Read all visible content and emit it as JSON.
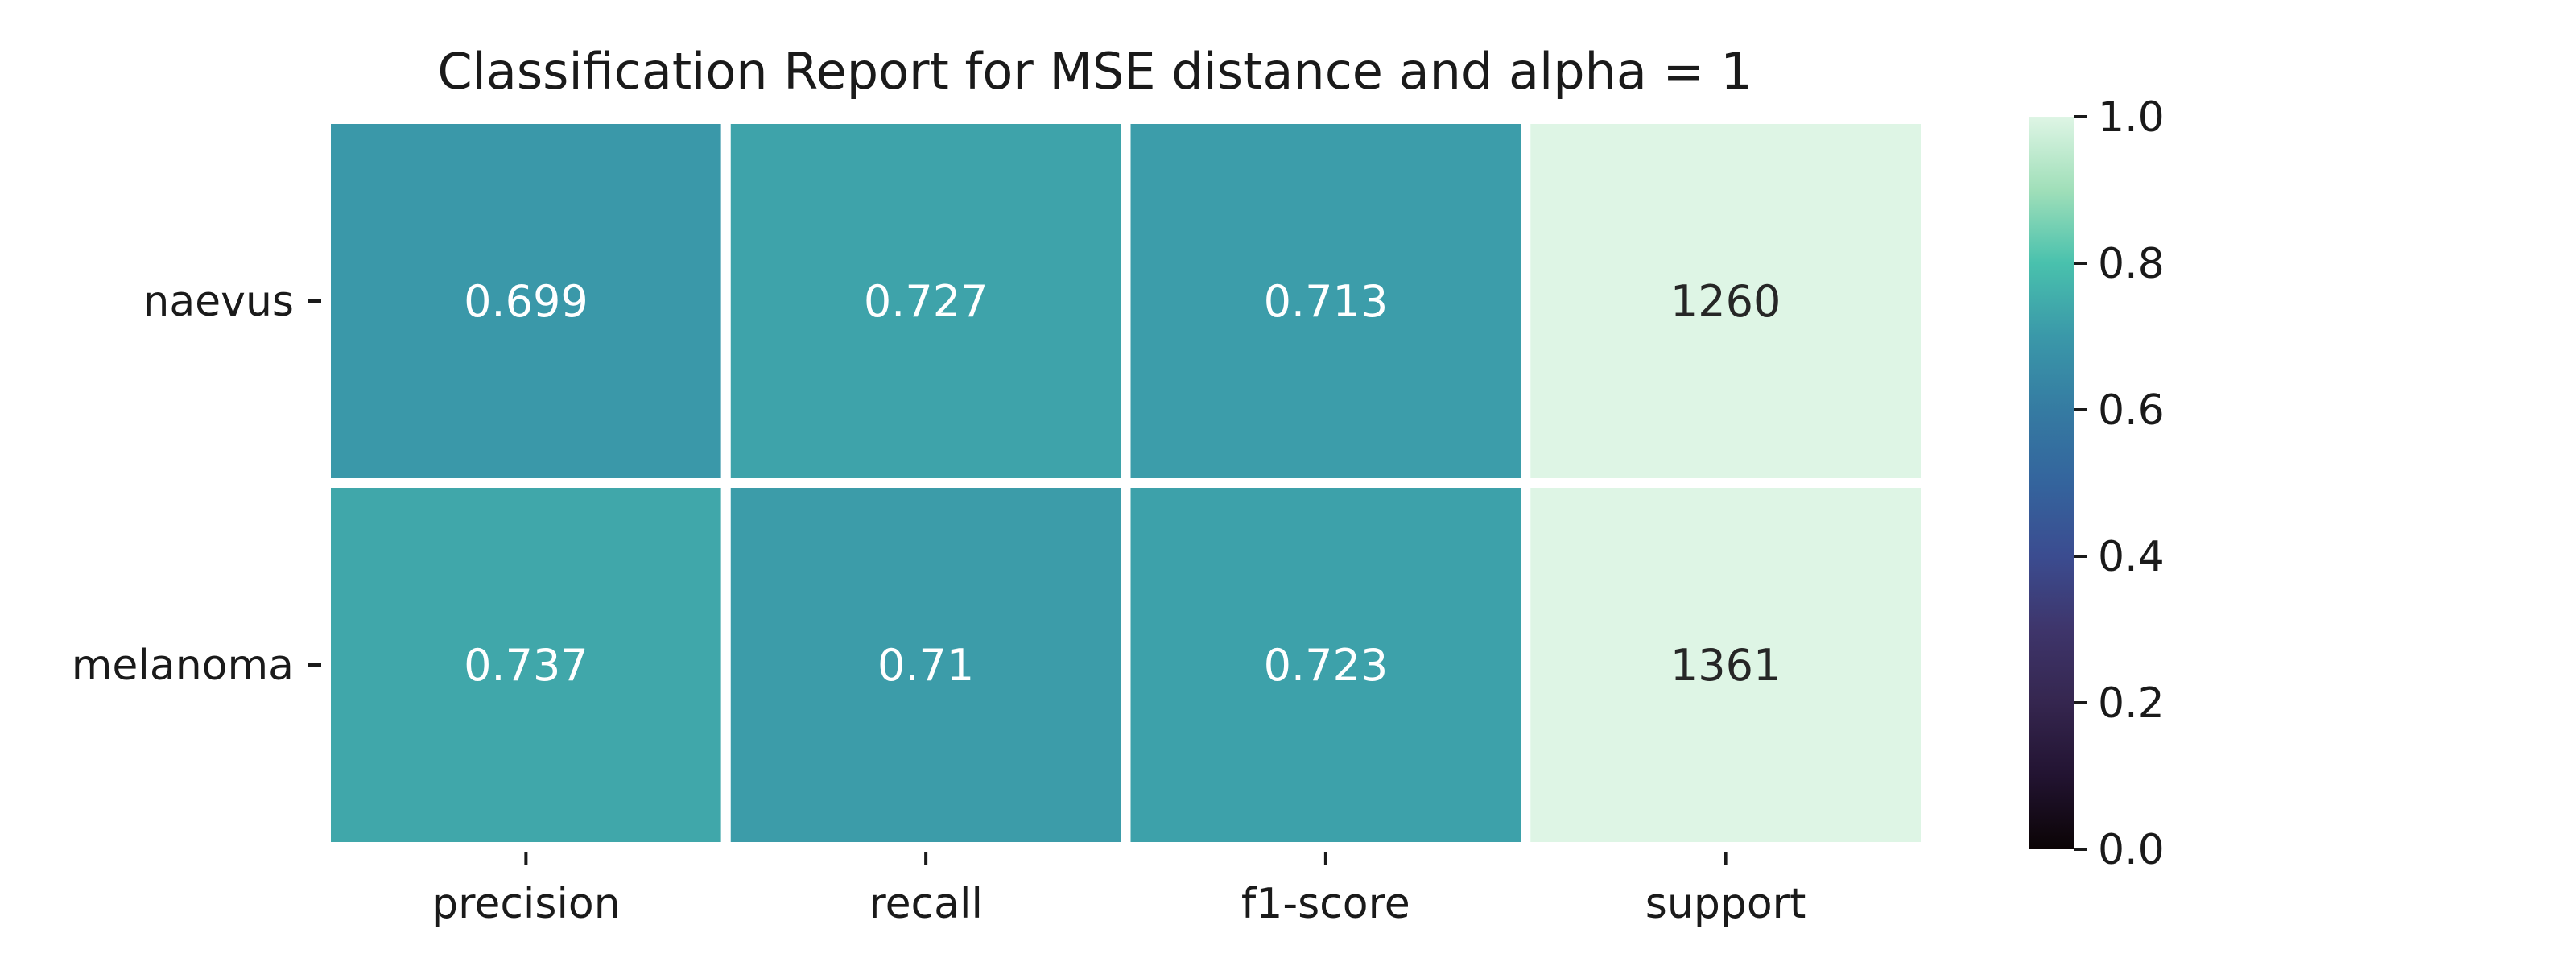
{
  "chart_data": {
    "type": "heatmap",
    "title": "Classification Report for MSE distance and alpha = 1",
    "xlabel": "",
    "ylabel": "",
    "columns": [
      "precision",
      "recall",
      "f1-score",
      "support"
    ],
    "rows": [
      "naevus",
      "melanoma"
    ],
    "values": [
      [
        0.699,
        0.727,
        0.713,
        1260
      ],
      [
        0.737,
        0.71,
        0.723,
        1361
      ]
    ],
    "cell_labels": [
      [
        "0.699",
        "0.727",
        "0.713",
        "1260"
      ],
      [
        "0.737",
        "0.71",
        "0.723",
        "1361"
      ]
    ],
    "colorbar": {
      "range": [
        0.0,
        1.0
      ],
      "ticks": [
        "0.0",
        "0.2",
        "0.4",
        "0.6",
        "0.8",
        "1.0"
      ]
    },
    "colormap": "mako",
    "colors": {
      "light_text": "#ffffff",
      "dark_text": "#262626",
      "cell_separator": "#ffffff"
    },
    "grid": false
  }
}
